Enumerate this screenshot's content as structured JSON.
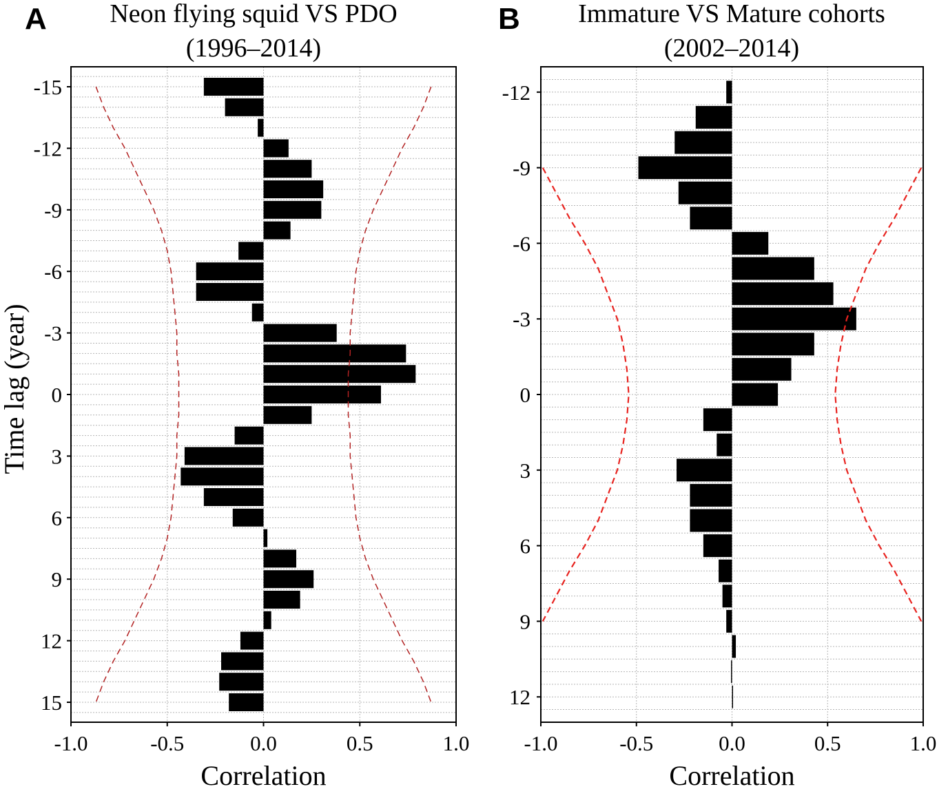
{
  "chart_data": [
    {
      "panel": "A",
      "type": "bar",
      "orientation": "horizontal",
      "title": [
        "Neon flying squid VS PDO",
        "(1996–2014)"
      ],
      "xlabel": "Correlation",
      "ylabel": "Time lag (year)",
      "xlim": [
        -1.0,
        1.0
      ],
      "ylim": [
        -16,
        16
      ],
      "xticks": [
        -1.0,
        -0.5,
        0.0,
        0.5,
        1.0
      ],
      "xtick_labels": [
        "-1.0",
        "-0.5",
        "0.0",
        "0.5",
        "1.0"
      ],
      "yticks": [
        -15,
        -12,
        -9,
        -6,
        -3,
        0,
        3,
        6,
        9,
        12,
        15
      ],
      "ytick_labels": [
        "-15",
        "-12",
        "-9",
        "-6",
        "-3",
        "0",
        "3",
        "6",
        "9",
        "12",
        "15"
      ],
      "lags": [
        -15,
        -14,
        -13,
        -12,
        -11,
        -10,
        -9,
        -8,
        -7,
        -6,
        -5,
        -4,
        -3,
        -2,
        -1,
        0,
        1,
        2,
        3,
        4,
        5,
        6,
        7,
        8,
        9,
        10,
        11,
        12,
        13,
        14,
        15
      ],
      "values": [
        -0.31,
        -0.2,
        -0.03,
        0.13,
        0.25,
        0.31,
        0.3,
        0.14,
        -0.13,
        -0.35,
        -0.35,
        -0.06,
        0.38,
        0.74,
        0.79,
        0.61,
        0.25,
        -0.15,
        -0.41,
        -0.43,
        -0.31,
        -0.16,
        0.02,
        0.17,
        0.26,
        0.19,
        0.04,
        -0.12,
        -0.22,
        -0.23,
        -0.18
      ],
      "confidence_limit": {
        "lags": [
          -15,
          -14,
          -13,
          -12,
          -11,
          -10,
          -9,
          -8,
          -7,
          -6,
          -5,
          -4,
          -3,
          -2,
          -1,
          0,
          1,
          2,
          3,
          4,
          5,
          6,
          7,
          8,
          9,
          10,
          11,
          12,
          13,
          14,
          15
        ],
        "values": [
          0.87,
          0.83,
          0.78,
          0.72,
          0.67,
          0.62,
          0.57,
          0.53,
          0.5,
          0.48,
          0.47,
          0.46,
          0.45,
          0.45,
          0.44,
          0.44,
          0.44,
          0.45,
          0.45,
          0.46,
          0.47,
          0.48,
          0.5,
          0.53,
          0.57,
          0.62,
          0.67,
          0.72,
          0.78,
          0.83,
          0.87
        ],
        "color": "#b22222"
      }
    },
    {
      "panel": "B",
      "type": "bar",
      "orientation": "horizontal",
      "title": [
        "Immature VS Mature cohorts",
        "(2002–2014)"
      ],
      "xlabel": "Correlation",
      "ylabel": "",
      "xlim": [
        -1.0,
        1.0
      ],
      "ylim": [
        -13,
        13
      ],
      "xticks": [
        -1.0,
        -0.5,
        0.0,
        0.5,
        1.0
      ],
      "xtick_labels": [
        "-1.0",
        "-0.5",
        "0.0",
        "0.5",
        "1.0"
      ],
      "yticks": [
        -12,
        -9,
        -6,
        -3,
        0,
        3,
        6,
        9,
        12
      ],
      "ytick_labels": [
        "-12",
        "-9",
        "-6",
        "-3",
        "0",
        "3",
        "6",
        "9",
        "12"
      ],
      "lags": [
        -12,
        -11,
        -10,
        -9,
        -8,
        -7,
        -6,
        -5,
        -4,
        -3,
        -2,
        -1,
        0,
        1,
        2,
        3,
        4,
        5,
        6,
        7,
        8,
        9,
        10,
        11,
        12
      ],
      "values": [
        -0.03,
        -0.19,
        -0.3,
        -0.49,
        -0.28,
        -0.22,
        0.19,
        0.43,
        0.53,
        0.65,
        0.43,
        0.31,
        0.24,
        -0.15,
        -0.08,
        -0.29,
        -0.22,
        -0.22,
        -0.15,
        -0.07,
        -0.05,
        -0.03,
        0.02,
        -0.005,
        0.0
      ],
      "confidence_limit": {
        "lags": [
          -9,
          -8,
          -7,
          -6,
          -5,
          -4,
          -3,
          -2,
          -1,
          0,
          1,
          2,
          3,
          4,
          5,
          6,
          7,
          8,
          9
        ],
        "values": [
          0.99,
          0.92,
          0.85,
          0.77,
          0.7,
          0.65,
          0.6,
          0.57,
          0.55,
          0.54,
          0.55,
          0.57,
          0.6,
          0.65,
          0.7,
          0.77,
          0.85,
          0.92,
          0.99
        ],
        "color": "#e8231f"
      }
    }
  ]
}
